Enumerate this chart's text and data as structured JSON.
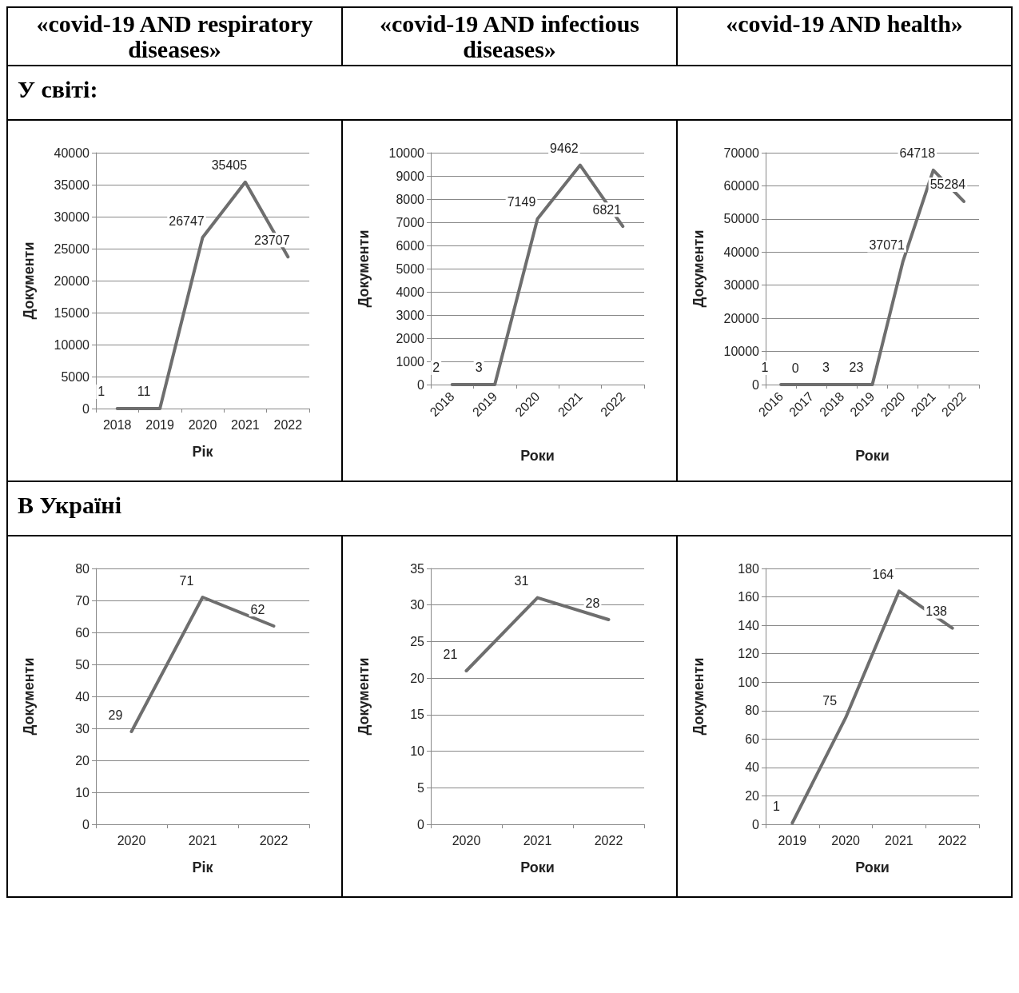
{
  "chart_data": [
    {
      "type": "line",
      "title": "«covid-19  AND respiratory  diseases»",
      "subtitle": "У світі:",
      "xlabel": "Рік",
      "ylabel": "Документи",
      "categories": [
        "2018",
        "2019",
        "2020",
        "2021",
        "2022"
      ],
      "values": [
        1,
        11,
        26747,
        35405,
        23707
      ],
      "color": "#6e6e6e",
      "ylim": [
        0,
        40000
      ],
      "yticks": [
        0,
        5000,
        10000,
        15000,
        20000,
        25000,
        30000,
        35000,
        40000
      ],
      "grid": "y",
      "marker": "none",
      "data_labels": true
    },
    {
      "type": "line",
      "title": "«covid-19  AND infectious  diseases»",
      "xlabel": "Роки",
      "ylabel": "Документи",
      "categories": [
        "2018",
        "2019",
        "2020",
        "2021",
        "2022"
      ],
      "values": [
        2,
        3,
        7149,
        9462,
        6821
      ],
      "color": "#6e6e6e",
      "ylim": [
        0,
        10000
      ],
      "yticks": [
        0,
        1000,
        2000,
        3000,
        4000,
        5000,
        6000,
        7000,
        8000,
        9000,
        10000
      ],
      "grid": "y",
      "marker": "none",
      "data_labels": true
    },
    {
      "type": "line",
      "title": "«covid-19 AND  health»",
      "xlabel": "Роки",
      "ylabel": "Документи",
      "categories": [
        "2016",
        "2017",
        "2018",
        "2019",
        "2020",
        "2021",
        "2022"
      ],
      "values": [
        1,
        0,
        3,
        23,
        37071,
        64718,
        55284
      ],
      "color": "#6e6e6e",
      "ylim": [
        0,
        70000
      ],
      "yticks": [
        0,
        10000,
        20000,
        30000,
        40000,
        50000,
        60000,
        70000
      ],
      "grid": "y",
      "marker": "none",
      "data_labels": true
    },
    {
      "type": "line",
      "subtitle": "В Україні",
      "xlabel": "Рік",
      "ylabel": "Документи",
      "categories": [
        "2020",
        "2021",
        "2022"
      ],
      "values": [
        29,
        71,
        62
      ],
      "color": "#6e6e6e",
      "ylim": [
        0,
        80
      ],
      "yticks": [
        0,
        10,
        20,
        30,
        40,
        50,
        60,
        70,
        80
      ],
      "grid": "y",
      "marker": "none",
      "data_labels": true
    },
    {
      "type": "line",
      "xlabel": "Роки",
      "ylabel": "Документи",
      "categories": [
        "2020",
        "2021",
        "2022"
      ],
      "values": [
        21,
        31,
        28
      ],
      "color": "#6e6e6e",
      "ylim": [
        0,
        35
      ],
      "yticks": [
        0,
        5,
        10,
        15,
        20,
        25,
        30,
        35
      ],
      "grid": "y",
      "marker": "none",
      "data_labels": true
    },
    {
      "type": "line",
      "xlabel": "Роки",
      "ylabel": "Документи",
      "categories": [
        "2019",
        "2020",
        "2021",
        "2022"
      ],
      "values": [
        1,
        75,
        164,
        138
      ],
      "color": "#6e6e6e",
      "ylim": [
        0,
        180
      ],
      "yticks": [
        0,
        20,
        40,
        60,
        80,
        100,
        120,
        140,
        160,
        180
      ],
      "grid": "y",
      "marker": "none",
      "data_labels": true
    }
  ]
}
